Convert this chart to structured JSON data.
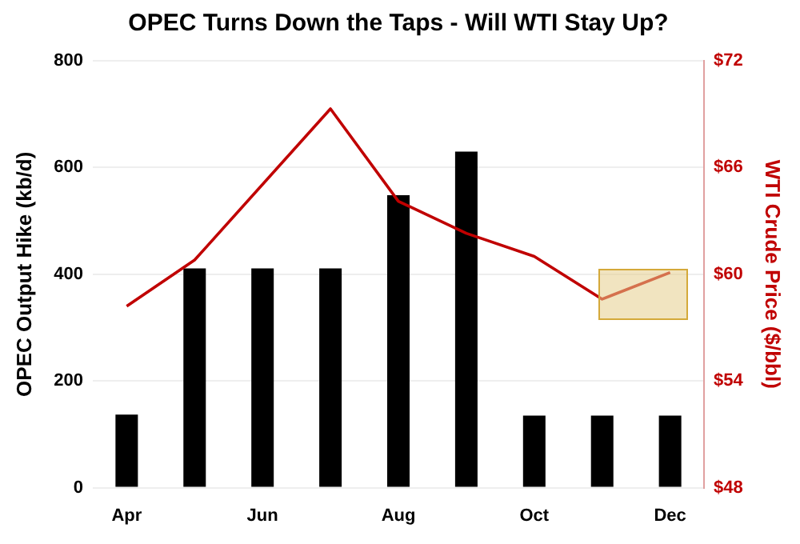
{
  "chart_data": {
    "type": "bar",
    "title": "OPEC Turns Down the Taps - Will WTI Stay Up?",
    "ylabel": "OPEC Output Hike (kb/d)",
    "y2label": "WTI Crude Price ($/bbl)",
    "categories": [
      "Apr",
      null,
      "Jun",
      null,
      "Aug",
      null,
      "Oct",
      null,
      "Dec"
    ],
    "series": [
      {
        "color": "#000000",
        "values": [
          137,
          411,
          411,
          411,
          548,
          630,
          135,
          135,
          135
        ]
      },
      {
        "type": "line",
        "axis": "y2",
        "color": "#c00000",
        "values": [
          58.2,
          60.8,
          null,
          69.3,
          64.1,
          62.3,
          61.0,
          58.6,
          60.1
        ]
      }
    ],
    "ylim": [
      0,
      800
    ],
    "yticks": [
      0,
      200,
      400,
      600,
      800
    ],
    "y2lim": [
      48,
      72
    ],
    "y2ticks": [
      {
        "value": 48,
        "label": "$48"
      },
      {
        "value": 54,
        "label": "$54"
      },
      {
        "value": 60,
        "label": "$60"
      },
      {
        "value": 66,
        "label": "$66"
      },
      {
        "value": 72,
        "label": "$72"
      }
    ],
    "grid": "y",
    "marker": "none",
    "line_style": "solid"
  }
}
